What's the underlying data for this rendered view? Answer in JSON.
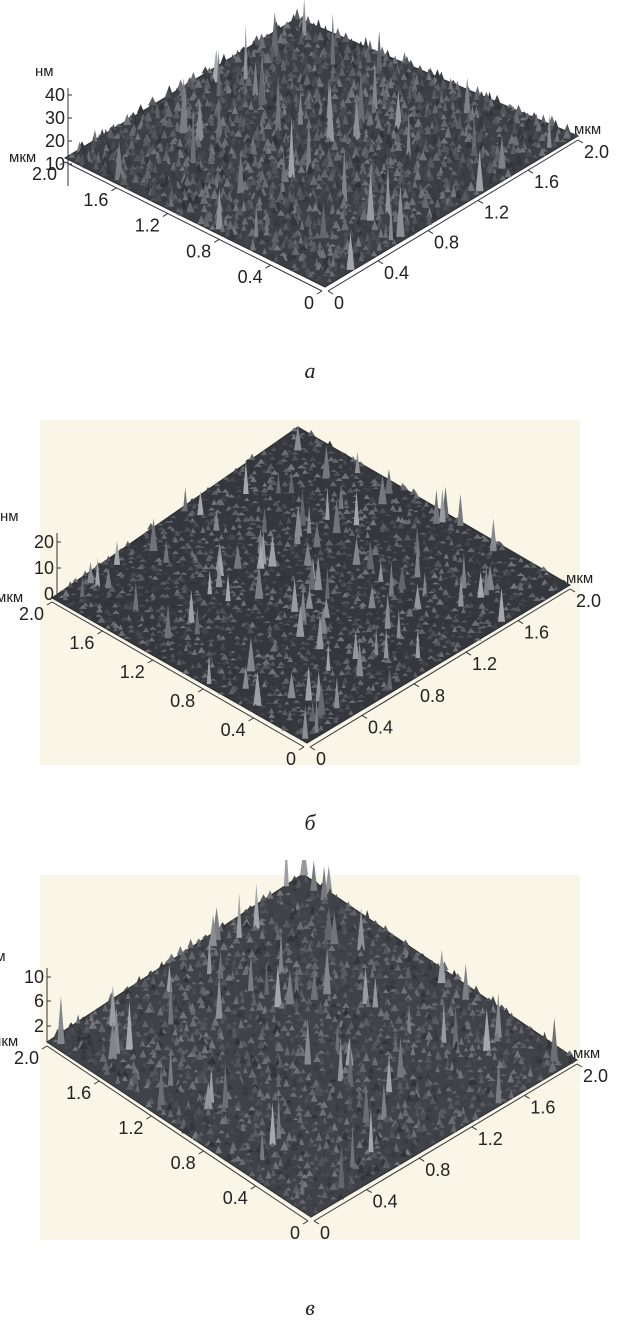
{
  "chart_data": [
    {
      "type": "3d-surface",
      "panel_label": "а",
      "z_unit": "нм",
      "z_ticks": [
        "40",
        "30",
        "20",
        "10"
      ],
      "zlim": [
        0,
        45
      ],
      "x_unit": "мкм",
      "y_unit": "мкм",
      "left_axis_ticks": [
        "2.0",
        "1.6",
        "1.2",
        "0.8",
        "0.4",
        "0"
      ],
      "right_axis_ticks": [
        "0",
        "0.4",
        "0.8",
        "1.2",
        "1.6",
        "2.0"
      ],
      "xlim": [
        0,
        2.0
      ],
      "ylim": [
        0,
        2.0
      ],
      "background": "#ffffff",
      "surface_color": "#3c3f44"
    },
    {
      "type": "3d-surface",
      "panel_label": "б",
      "z_unit": "нм",
      "z_ticks": [
        "20",
        "10",
        "0"
      ],
      "zlim": [
        0,
        25
      ],
      "x_unit": "мкм",
      "y_unit": "мкм",
      "left_axis_ticks": [
        "2.0",
        "1.6",
        "1.2",
        "0.8",
        "0.4",
        "0"
      ],
      "right_axis_ticks": [
        "0",
        "0.4",
        "0.8",
        "1.2",
        "1.6",
        "2.0"
      ],
      "xlim": [
        0,
        2.0
      ],
      "ylim": [
        0,
        2.0
      ],
      "background": "#f9f6e7",
      "surface_color": "#34373b"
    },
    {
      "type": "3d-surface",
      "panel_label": "в",
      "z_unit": "нм",
      "z_ticks": [
        "10",
        "6",
        "2"
      ],
      "zlim": [
        0,
        12
      ],
      "x_unit": "мкм",
      "y_unit": "мкм",
      "left_axis_ticks": [
        "2.0",
        "1.6",
        "1.2",
        "0.8",
        "0.4",
        "0"
      ],
      "right_axis_ticks": [
        "0",
        "0.4",
        "0.8",
        "1.2",
        "1.6",
        "2.0"
      ],
      "xlim": [
        0,
        2.0
      ],
      "ylim": [
        0,
        2.0
      ],
      "background": "#f9f6e7",
      "surface_color": "#3f4247"
    }
  ]
}
